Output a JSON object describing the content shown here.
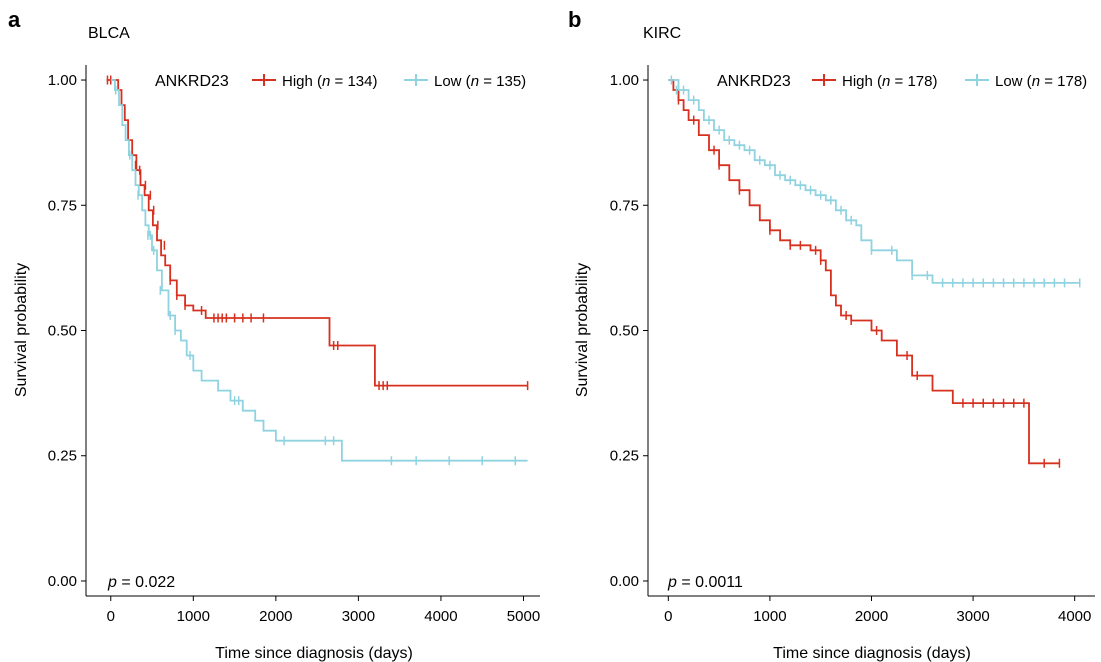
{
  "colors": {
    "high": "#d7301f",
    "low": "#8fd3e0",
    "axis": "#000000"
  },
  "chart_data": [
    {
      "type": "line",
      "panel_letter": "a",
      "title": "BLCA",
      "xlabel": "Time since diagnosis (days)",
      "ylabel": "Survival probability",
      "xlim": [
        -300,
        5200
      ],
      "ylim": [
        -0.03,
        1.03
      ],
      "xticks": [
        0,
        1000,
        2000,
        3000,
        4000,
        5000
      ],
      "yticks": [
        0.0,
        0.25,
        0.5,
        0.75,
        1.0
      ],
      "xtick_labels": [
        "0",
        "1000",
        "2000",
        "3000",
        "4000",
        "5000"
      ],
      "ytick_labels": [
        "0.00",
        "0.25",
        "0.50",
        "0.75",
        "1.00"
      ],
      "legend": {
        "gene": "ANKRD23",
        "high_label": "High (",
        "high_n": "134",
        "low_label": "Low (",
        "low_n": "135",
        "n_italic": "n",
        "eq": " = ",
        "close": ")"
      },
      "pvalue": {
        "p": "p",
        "text": " = 0.022"
      },
      "series": [
        {
          "name": "High",
          "color_key": "high",
          "x": [
            -50,
            90,
            130,
            170,
            210,
            260,
            310,
            360,
            410,
            460,
            510,
            560,
            610,
            660,
            720,
            800,
            900,
            1000,
            1150,
            2650,
            3200,
            5050
          ],
          "y": [
            1.0,
            0.98,
            0.95,
            0.92,
            0.88,
            0.85,
            0.82,
            0.79,
            0.77,
            0.74,
            0.71,
            0.68,
            0.65,
            0.63,
            0.6,
            0.57,
            0.55,
            0.54,
            0.525,
            0.47,
            0.39,
            0.39
          ],
          "censor_x": [
            -40,
            0,
            260,
            300,
            350,
            420,
            480,
            520,
            570,
            650,
            720,
            800,
            900,
            1100,
            1250,
            1300,
            1350,
            1400,
            1500,
            1600,
            1700,
            1850,
            2700,
            2750,
            3250,
            3300,
            3350,
            5050
          ],
          "censor_y": [
            1.0,
            1.0,
            0.85,
            0.83,
            0.82,
            0.79,
            0.77,
            0.74,
            0.71,
            0.67,
            0.6,
            0.57,
            0.55,
            0.54,
            0.525,
            0.525,
            0.525,
            0.525,
            0.525,
            0.525,
            0.525,
            0.525,
            0.47,
            0.47,
            0.39,
            0.39,
            0.39,
            0.39
          ]
        },
        {
          "name": "Low",
          "color_key": "low",
          "x": [
            0,
            50,
            100,
            140,
            180,
            220,
            260,
            300,
            340,
            380,
            420,
            460,
            500,
            560,
            620,
            700,
            780,
            850,
            920,
            1000,
            1100,
            1300,
            1450,
            1600,
            1750,
            1850,
            2000,
            2800,
            5050
          ],
          "y": [
            1.0,
            0.98,
            0.95,
            0.91,
            0.88,
            0.85,
            0.82,
            0.79,
            0.77,
            0.74,
            0.71,
            0.69,
            0.66,
            0.62,
            0.58,
            0.53,
            0.5,
            0.48,
            0.45,
            0.42,
            0.4,
            0.38,
            0.36,
            0.34,
            0.32,
            0.3,
            0.28,
            0.24,
            0.24
          ],
          "censor_x": [
            60,
            230,
            330,
            450,
            480,
            520,
            600,
            720,
            780,
            960,
            1500,
            1550,
            2100,
            2600,
            2700,
            3400,
            3700,
            4100,
            4500,
            4900
          ],
          "censor_y": [
            0.98,
            0.85,
            0.77,
            0.69,
            0.69,
            0.66,
            0.58,
            0.53,
            0.5,
            0.45,
            0.36,
            0.36,
            0.28,
            0.28,
            0.28,
            0.24,
            0.24,
            0.24,
            0.24,
            0.24
          ]
        }
      ]
    },
    {
      "type": "line",
      "panel_letter": "b",
      "title": "KIRC",
      "xlabel": "Time since diagnosis (days)",
      "ylabel": "Survival probability",
      "xlim": [
        -200,
        4200
      ],
      "ylim": [
        -0.03,
        1.03
      ],
      "xticks": [
        0,
        1000,
        2000,
        3000,
        4000
      ],
      "yticks": [
        0.0,
        0.25,
        0.5,
        0.75,
        1.0
      ],
      "xtick_labels": [
        "0",
        "1000",
        "2000",
        "3000",
        "4000"
      ],
      "ytick_labels": [
        "0.00",
        "0.25",
        "0.50",
        "0.75",
        "1.00"
      ],
      "legend": {
        "gene": "ANKRD23",
        "high_label": "High (",
        "high_n": "178",
        "low_label": "Low (",
        "low_n": "178",
        "n_italic": "n",
        "eq": " = ",
        "close": ")"
      },
      "pvalue": {
        "p": "p",
        "text": " = 0.0011"
      },
      "series": [
        {
          "name": "High",
          "color_key": "high",
          "x": [
            0,
            50,
            100,
            150,
            200,
            300,
            400,
            500,
            600,
            700,
            800,
            900,
            1000,
            1100,
            1200,
            1400,
            1500,
            1550,
            1600,
            1650,
            1700,
            1800,
            2000,
            2100,
            2250,
            2400,
            2600,
            2800,
            3300,
            3550,
            3850
          ],
          "y": [
            1.0,
            0.98,
            0.96,
            0.94,
            0.92,
            0.89,
            0.86,
            0.83,
            0.8,
            0.78,
            0.75,
            0.72,
            0.7,
            0.68,
            0.67,
            0.66,
            0.64,
            0.62,
            0.57,
            0.55,
            0.53,
            0.52,
            0.5,
            0.48,
            0.45,
            0.41,
            0.38,
            0.355,
            0.355,
            0.235,
            0.235
          ],
          "censor_x": [
            100,
            250,
            450,
            500,
            700,
            1000,
            1200,
            1300,
            1450,
            1500,
            1750,
            1800,
            2050,
            2350,
            2450,
            2900,
            3000,
            3100,
            3200,
            3300,
            3400,
            3500,
            3700,
            3850
          ],
          "censor_y": [
            0.96,
            0.92,
            0.86,
            0.83,
            0.78,
            0.7,
            0.67,
            0.67,
            0.66,
            0.64,
            0.53,
            0.52,
            0.5,
            0.45,
            0.41,
            0.355,
            0.355,
            0.355,
            0.355,
            0.355,
            0.355,
            0.355,
            0.235,
            0.235
          ]
        },
        {
          "name": "Low",
          "color_key": "low",
          "x": [
            0,
            100,
            200,
            300,
            350,
            450,
            550,
            650,
            750,
            850,
            950,
            1050,
            1150,
            1250,
            1350,
            1450,
            1550,
            1650,
            1750,
            1850,
            1900,
            2000,
            2100,
            2250,
            2400,
            2600,
            4050
          ],
          "y": [
            1.0,
            0.98,
            0.96,
            0.94,
            0.92,
            0.9,
            0.88,
            0.87,
            0.86,
            0.84,
            0.83,
            0.81,
            0.8,
            0.79,
            0.78,
            0.77,
            0.76,
            0.74,
            0.72,
            0.71,
            0.68,
            0.66,
            0.66,
            0.64,
            0.61,
            0.595,
            0.595
          ],
          "censor_x": [
            30,
            80,
            150,
            250,
            400,
            500,
            600,
            700,
            800,
            900,
            1000,
            1100,
            1200,
            1300,
            1400,
            1500,
            1600,
            1700,
            1800,
            2000,
            2200,
            2400,
            2550,
            2700,
            2800,
            2900,
            3000,
            3100,
            3200,
            3300,
            3400,
            3500,
            3600,
            3700,
            3800,
            3900,
            4050
          ],
          "censor_y": [
            1.0,
            0.98,
            0.98,
            0.96,
            0.92,
            0.9,
            0.88,
            0.87,
            0.86,
            0.84,
            0.83,
            0.81,
            0.8,
            0.79,
            0.78,
            0.77,
            0.76,
            0.74,
            0.72,
            0.66,
            0.66,
            0.61,
            0.61,
            0.595,
            0.595,
            0.595,
            0.595,
            0.595,
            0.595,
            0.595,
            0.595,
            0.595,
            0.595,
            0.595,
            0.595,
            0.595,
            0.595
          ]
        }
      ]
    }
  ]
}
